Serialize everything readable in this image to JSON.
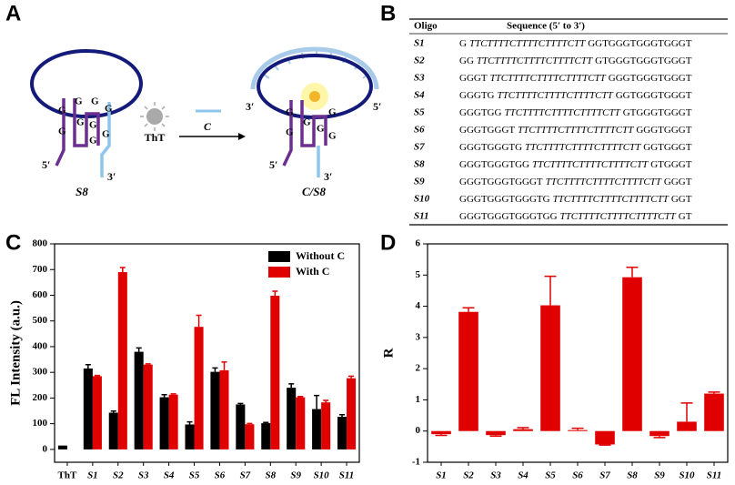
{
  "panel_labels": [
    "A",
    "B",
    "C",
    "D"
  ],
  "diagram": {
    "ligand": "ThT",
    "arrow_label": "C",
    "left_label": "S8",
    "right_label": "C/S8",
    "five": "5′",
    "three": "3′",
    "base": "G"
  },
  "table": {
    "header": [
      "Oligo",
      "Sequence (5′ to 3′)"
    ],
    "rows": [
      [
        "S1",
        "G",
        "TTCTTTTCTTTTCTTTTCTT",
        "GGTGGGTGGGTGGGT"
      ],
      [
        "S2",
        "GG",
        "TTCTTTTCTTTTCTTTTCTT",
        "GTGGGTGGGTGGGT"
      ],
      [
        "S3",
        "GGGT",
        "TTCTTTTCTTTTCTTTTCTT",
        "GGGTGGGTGGGT"
      ],
      [
        "S4",
        "GGGTG",
        "TTCTTTTCTTTTCTTTTCTT",
        "GGTGGGTGGGT"
      ],
      [
        "S5",
        "GGGTGG",
        "TTCTTTTCTTTTCTTTTCTT",
        "GTGGGTGGGT"
      ],
      [
        "S6",
        "GGGTGGGT",
        "TTCTTTTCTTTTCTTTTCTT",
        "GGGTGGGT"
      ],
      [
        "S7",
        "GGGTGGGTG",
        "TTCTTTTCTTTTCTTTTCTT",
        "GGTGGGT"
      ],
      [
        "S8",
        "GGGTGGGTGG",
        "TTCTTTTCTTTTCTTTTCTT",
        "GTGGGT"
      ],
      [
        "S9",
        "GGGTGGGTGGGT",
        "TTCTTTTCTTTTCTTTTCTT",
        "GGGT"
      ],
      [
        "S10",
        "GGGTGGGTGGGTG",
        "TTCTTTTCTTTTCTTTTCTT",
        "GGT"
      ],
      [
        "S11",
        "GGGTGGGTGGGTGG",
        "TTCTTTTCTTTTCTTTTCTT",
        "GT"
      ]
    ]
  },
  "chart_data": [
    {
      "type": "bar",
      "ylabel": "FL Intensity (a.u.)",
      "categories": [
        "ThT",
        "S1",
        "S2",
        "S3",
        "S4",
        "S5",
        "S6",
        "S7",
        "S8",
        "S9",
        "S10",
        "S11"
      ],
      "series": [
        {
          "name": "Without C",
          "color": "#000000",
          "values": [
            15,
            315,
            143,
            380,
            203,
            97,
            302,
            175,
            102,
            240,
            157,
            127
          ],
          "errors": [
            0,
            15,
            6,
            15,
            10,
            10,
            15,
            4,
            3,
            15,
            53,
            8
          ]
        },
        {
          "name": "With C",
          "color": "#e00000",
          "values": [
            null,
            285,
            690,
            330,
            213,
            477,
            308,
            98,
            598,
            203,
            183,
            277
          ],
          "errors": [
            null,
            3,
            18,
            3,
            3,
            45,
            32,
            3,
            18,
            3,
            8,
            8
          ]
        }
      ],
      "ylim": [
        -50,
        800
      ],
      "yticks": [
        0,
        100,
        200,
        300,
        400,
        500,
        600,
        700,
        800
      ],
      "legend": "upper right"
    },
    {
      "type": "bar",
      "ylabel": "R",
      "categories": [
        "S1",
        "S2",
        "S3",
        "S4",
        "S5",
        "S6",
        "S7",
        "S8",
        "S9",
        "S10",
        "S11"
      ],
      "series": [
        {
          "color": "#e00000",
          "values": [
            -0.1,
            3.82,
            -0.13,
            0.06,
            4.03,
            0.03,
            -0.43,
            4.93,
            -0.16,
            0.3,
            1.2
          ],
          "errors": [
            0.04,
            0.13,
            0.03,
            0.05,
            0.93,
            0.06,
            0.02,
            0.32,
            0.05,
            0.6,
            0.05
          ]
        }
      ],
      "ylim": [
        -1,
        6
      ],
      "yticks": [
        -1,
        0,
        1,
        2,
        3,
        4,
        5,
        6
      ]
    }
  ]
}
